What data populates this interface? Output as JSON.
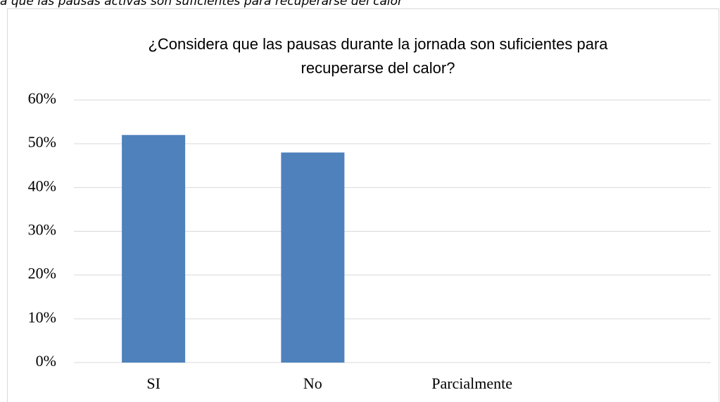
{
  "caption": "a que las pausas activas son suficientes para recuperarse del calor",
  "chart_data": {
    "type": "bar",
    "title": [
      "¿Considera que las pausas durante la jornada son suficientes para",
      "recuperarse del calor?"
    ],
    "categories": [
      "SI",
      "No",
      "Parcialmente",
      null
    ],
    "values": [
      52,
      48,
      0,
      null
    ],
    "color": "#4f81bd",
    "ylim": [
      0,
      60
    ],
    "yticks": [
      {
        "value": 0,
        "label": "0%"
      },
      {
        "value": 10,
        "label": "10%"
      },
      {
        "value": 20,
        "label": "20%"
      },
      {
        "value": 30,
        "label": "30%"
      },
      {
        "value": 40,
        "label": "40%"
      },
      {
        "value": 50,
        "label": "50%"
      },
      {
        "value": 60,
        "label": "60%"
      }
    ],
    "grid": true
  }
}
